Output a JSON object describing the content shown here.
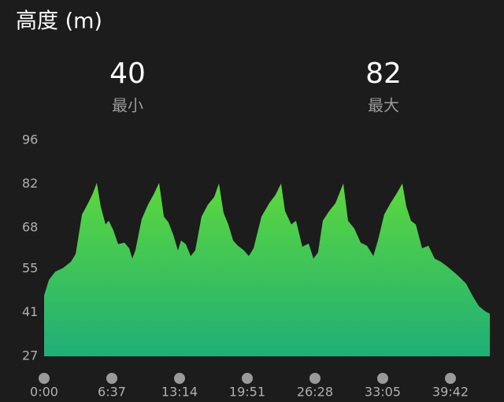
{
  "chart_data": {
    "type": "area",
    "title": "高度 (m)",
    "stats": [
      {
        "value": 40,
        "label": "最小"
      },
      {
        "value": 82,
        "label": "最大"
      }
    ],
    "x": [
      0,
      28,
      65,
      111,
      157,
      185,
      222,
      258,
      286,
      309,
      332,
      360,
      379,
      406,
      434,
      471,
      499,
      517,
      535,
      572,
      609,
      646,
      674,
      702,
      729,
      757,
      785,
      803,
      831,
      859,
      886,
      923,
      960,
      997,
      1025,
      1052,
      1080,
      1108,
      1136,
      1172,
      1200,
      1228,
      1274,
      1320,
      1357,
      1389,
      1412,
      1449,
      1477,
      1514,
      1551,
      1579,
      1606,
      1634,
      1671,
      1708,
      1754,
      1782,
      1819,
      1856,
      1893,
      1930,
      1957,
      1994,
      2031,
      2068,
      2100,
      2123,
      2151,
      2179,
      2216,
      2253,
      2290,
      2326,
      2363,
      2400,
      2437,
      2474,
      2511,
      2548,
      2585,
      2613
    ],
    "values": [
      46.4,
      51.4,
      54,
      55.2,
      57.2,
      59.7,
      72.3,
      75.9,
      79.1,
      82.4,
      74.9,
      69.1,
      70.3,
      67.3,
      62.8,
      63.3,
      61.5,
      58.2,
      60.8,
      70.8,
      75.4,
      79.1,
      82.4,
      71.6,
      69.8,
      65.8,
      60.8,
      64,
      62.8,
      59,
      60.8,
      71.6,
      75.4,
      77.9,
      82.2,
      72.8,
      69.1,
      64,
      62.3,
      60.8,
      59,
      61.5,
      71.6,
      75.9,
      78.6,
      82.2,
      73.4,
      69.1,
      70.3,
      62,
      63,
      58.2,
      60.2,
      70.3,
      73.4,
      75.9,
      82.2,
      70.3,
      67.8,
      63.3,
      62.3,
      59,
      64,
      72.3,
      75.9,
      79.1,
      82.2,
      74.9,
      70.3,
      69.1,
      61.5,
      62.3,
      58.2,
      57.2,
      55.7,
      54,
      52.2,
      50.2,
      46.4,
      43.1,
      41.4,
      40.6
    ],
    "color_top": "#5cd83c",
    "color_bottom": "#1fae78",
    "xlim": [
      0,
      2613
    ],
    "xticks": [
      {
        "value": 0,
        "label": "0:00"
      },
      {
        "value": 397,
        "label": "6:37"
      },
      {
        "value": 794,
        "label": "13:14"
      },
      {
        "value": 1191,
        "label": "19:51"
      },
      {
        "value": 1588,
        "label": "26:28"
      },
      {
        "value": 1985,
        "label": "33:05"
      },
      {
        "value": 2382,
        "label": "39:42"
      }
    ],
    "ylim": [
      27,
      96
    ],
    "yticks": [
      27,
      41,
      55,
      68,
      82,
      96
    ],
    "grid": false
  }
}
